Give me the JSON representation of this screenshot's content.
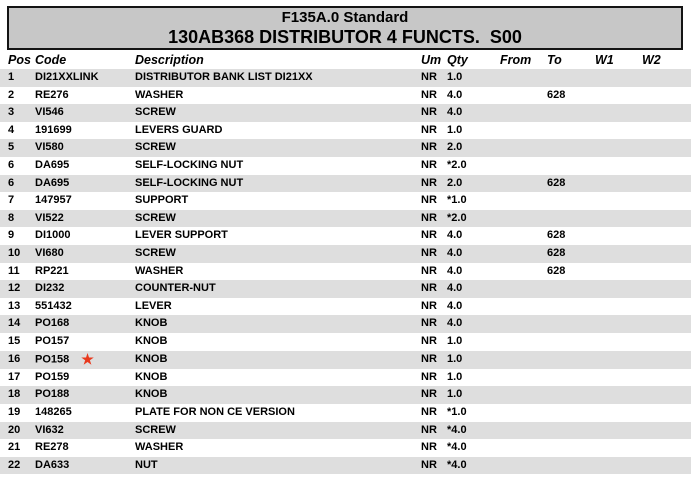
{
  "title_box": {
    "line1": "F135A.0 Standard",
    "line2": "130AB368 DISTRIBUTOR 4 FUNCTS.  S00",
    "bg_color": "#c7c7c7"
  },
  "table": {
    "columns": [
      "Pos",
      "Code",
      "Description",
      "Um",
      "Qty",
      "From",
      "To",
      "W1",
      "W2"
    ],
    "stripe_color": "#dedede",
    "rows": [
      {
        "pos": "1",
        "code": "DI21XXLINK",
        "description": "DISTRIBUTOR BANK LIST DI21XX",
        "um": "NR",
        "qty": "1.0",
        "from": "",
        "to": "",
        "w1": "",
        "w2": "",
        "star": false
      },
      {
        "pos": "2",
        "code": "RE276",
        "description": "WASHER",
        "um": "NR",
        "qty": "4.0",
        "from": "",
        "to": "628",
        "w1": "",
        "w2": "",
        "star": false
      },
      {
        "pos": "3",
        "code": "VI546",
        "description": "SCREW",
        "um": "NR",
        "qty": "4.0",
        "from": "",
        "to": "",
        "w1": "",
        "w2": "",
        "star": false
      },
      {
        "pos": "4",
        "code": "191699",
        "description": "LEVERS GUARD",
        "um": "NR",
        "qty": "1.0",
        "from": "",
        "to": "",
        "w1": "",
        "w2": "",
        "star": false
      },
      {
        "pos": "5",
        "code": "VI580",
        "description": "SCREW",
        "um": "NR",
        "qty": "2.0",
        "from": "",
        "to": "",
        "w1": "",
        "w2": "",
        "star": false
      },
      {
        "pos": "6",
        "code": "DA695",
        "description": "SELF-LOCKING NUT",
        "um": "NR",
        "qty": "*2.0",
        "from": "",
        "to": "",
        "w1": "",
        "w2": "",
        "star": false
      },
      {
        "pos": "6",
        "code": "DA695",
        "description": "SELF-LOCKING NUT",
        "um": "NR",
        "qty": "2.0",
        "from": "",
        "to": "628",
        "w1": "",
        "w2": "",
        "star": false
      },
      {
        "pos": "7",
        "code": "147957",
        "description": "SUPPORT",
        "um": "NR",
        "qty": "*1.0",
        "from": "",
        "to": "",
        "w1": "",
        "w2": "",
        "star": false
      },
      {
        "pos": "8",
        "code": "VI522",
        "description": "SCREW",
        "um": "NR",
        "qty": "*2.0",
        "from": "",
        "to": "",
        "w1": "",
        "w2": "",
        "star": false
      },
      {
        "pos": "9",
        "code": "DI1000",
        "description": "LEVER SUPPORT",
        "um": "NR",
        "qty": "4.0",
        "from": "",
        "to": "628",
        "w1": "",
        "w2": "",
        "star": false
      },
      {
        "pos": "10",
        "code": "VI680",
        "description": "SCREW",
        "um": "NR",
        "qty": "4.0",
        "from": "",
        "to": "628",
        "w1": "",
        "w2": "",
        "star": false
      },
      {
        "pos": "11",
        "code": "RP221",
        "description": "WASHER",
        "um": "NR",
        "qty": "4.0",
        "from": "",
        "to": "628",
        "w1": "",
        "w2": "",
        "star": false
      },
      {
        "pos": "12",
        "code": "DI232",
        "description": "COUNTER-NUT",
        "um": "NR",
        "qty": "4.0",
        "from": "",
        "to": "",
        "w1": "",
        "w2": "",
        "star": false
      },
      {
        "pos": "13",
        "code": "551432",
        "description": "LEVER",
        "um": "NR",
        "qty": "4.0",
        "from": "",
        "to": "",
        "w1": "",
        "w2": "",
        "star": false
      },
      {
        "pos": "14",
        "code": "PO168",
        "description": "KNOB",
        "um": "NR",
        "qty": "4.0",
        "from": "",
        "to": "",
        "w1": "",
        "w2": "",
        "star": false
      },
      {
        "pos": "15",
        "code": "PO157",
        "description": "KNOB",
        "um": "NR",
        "qty": "1.0",
        "from": "",
        "to": "",
        "w1": "",
        "w2": "",
        "star": false
      },
      {
        "pos": "16",
        "code": "PO158",
        "description": "KNOB",
        "um": "NR",
        "qty": "1.0",
        "from": "",
        "to": "",
        "w1": "",
        "w2": "",
        "star": true
      },
      {
        "pos": "17",
        "code": "PO159",
        "description": "KNOB",
        "um": "NR",
        "qty": "1.0",
        "from": "",
        "to": "",
        "w1": "",
        "w2": "",
        "star": false
      },
      {
        "pos": "18",
        "code": "PO188",
        "description": "KNOB",
        "um": "NR",
        "qty": "1.0",
        "from": "",
        "to": "",
        "w1": "",
        "w2": "",
        "star": false
      },
      {
        "pos": "19",
        "code": "148265",
        "description": "PLATE FOR NON CE VERSION",
        "um": "NR",
        "qty": "*1.0",
        "from": "",
        "to": "",
        "w1": "",
        "w2": "",
        "star": false
      },
      {
        "pos": "20",
        "code": "VI632",
        "description": "SCREW",
        "um": "NR",
        "qty": "*4.0",
        "from": "",
        "to": "",
        "w1": "",
        "w2": "",
        "star": false
      },
      {
        "pos": "21",
        "code": "RE278",
        "description": "WASHER",
        "um": "NR",
        "qty": "*4.0",
        "from": "",
        "to": "",
        "w1": "",
        "w2": "",
        "star": false
      },
      {
        "pos": "22",
        "code": "DA633",
        "description": "NUT",
        "um": "NR",
        "qty": "*4.0",
        "from": "",
        "to": "",
        "w1": "",
        "w2": "",
        "star": false
      }
    ]
  },
  "star_icon": {
    "glyph": "★",
    "color": "#e8391d"
  }
}
